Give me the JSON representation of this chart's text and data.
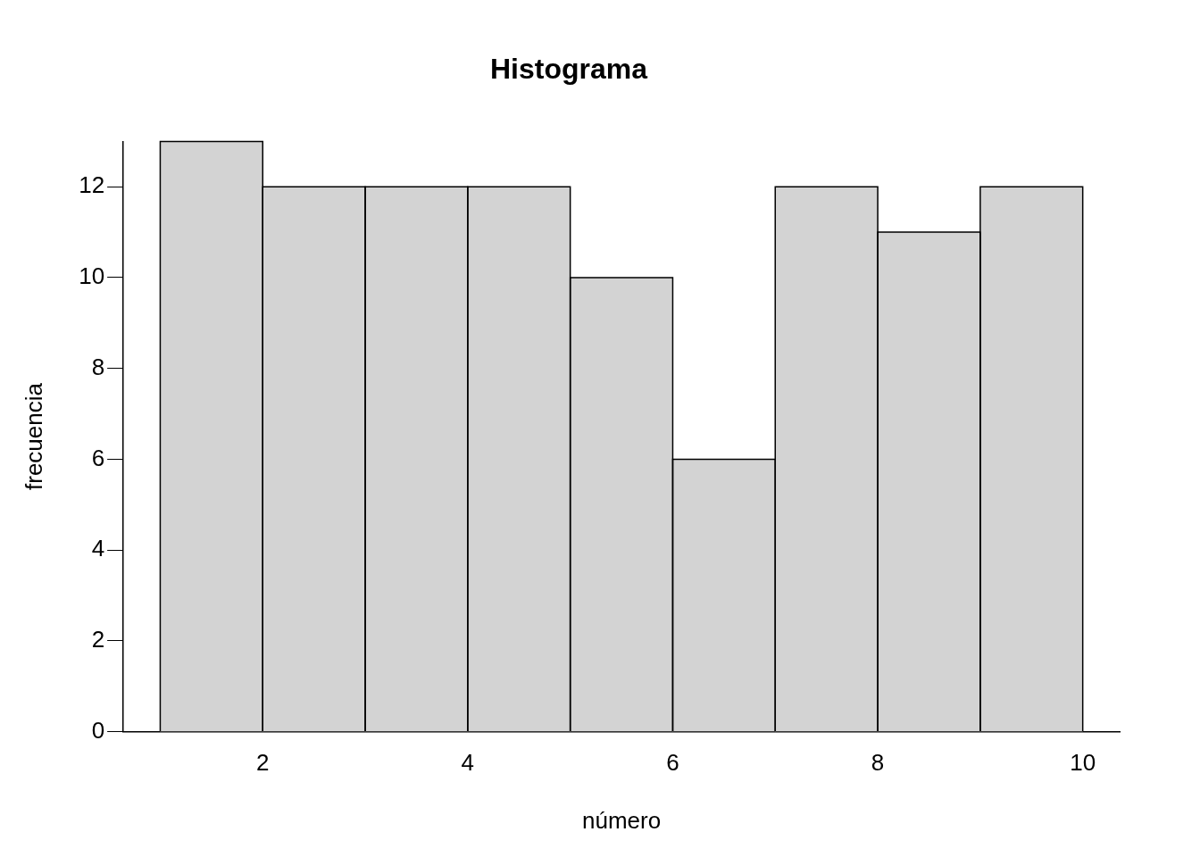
{
  "chart_data": {
    "type": "histogram",
    "title": "Histograma",
    "xlabel": "número",
    "ylabel": "frecuencia",
    "bins": [
      1,
      2,
      3,
      4,
      5,
      6,
      7,
      8,
      9,
      10
    ],
    "values": [
      13,
      12,
      12,
      12,
      10,
      6,
      12,
      11,
      12
    ],
    "color": "#d3d3d3",
    "xlim": [
      0.64,
      10.36
    ],
    "xticks": [
      2,
      4,
      6,
      8,
      10
    ],
    "ylim": [
      0,
      13
    ],
    "yticks": [
      0,
      2,
      4,
      6,
      8,
      10,
      12
    ],
    "grid": false,
    "legend": false
  }
}
